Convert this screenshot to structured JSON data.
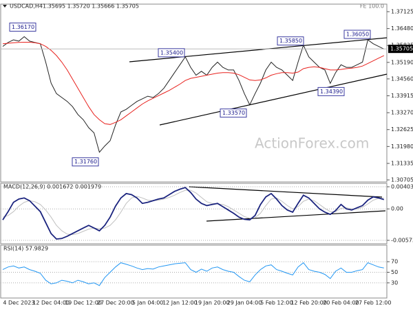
{
  "header": {
    "symbol": "USDCAD,H4",
    "quote": "1.35695 1.35720 1.35666 1.35705",
    "fe": "FE 100.0"
  },
  "watermark": "ActionForex.com",
  "chart_data": [
    {
      "type": "line",
      "categories": [
        null,
        null,
        null,
        "4 Dec 2023",
        null,
        null,
        null,
        null,
        null,
        "12 Dec 04:00",
        null,
        null,
        null,
        null,
        null,
        "19 Dec 12:00",
        null,
        null,
        null,
        null,
        null,
        "27 Dec 20:00",
        null,
        null,
        null,
        null,
        null,
        "5 Jan 04:00",
        null,
        null,
        null,
        null,
        null,
        "12 Jan 12:00",
        null,
        null,
        null,
        null,
        null,
        "19 Jan 20:00",
        null,
        null,
        null,
        null,
        null,
        "29 Jan 04:00",
        null,
        null,
        null,
        null,
        null,
        "5 Feb 12:00",
        null,
        null,
        null,
        null,
        null,
        "12 Feb 20:00",
        null,
        null,
        null,
        null,
        null,
        "20 Feb 04:00",
        null,
        null,
        null,
        null,
        null,
        "27 Feb 12:00",
        null,
        null
      ],
      "series": [
        {
          "color": "#222222",
          "values": [
            1.358,
            1.3595,
            1.3605,
            1.36,
            1.3617,
            1.36,
            1.3595,
            1.359,
            1.352,
            1.344,
            1.34,
            1.3385,
            1.337,
            1.335,
            1.332,
            1.33,
            1.327,
            1.325,
            1.3176,
            1.32,
            1.322,
            1.328,
            1.333,
            1.334,
            1.3355,
            1.337,
            1.338,
            1.339,
            1.3385,
            1.34,
            1.342,
            1.345,
            1.348,
            1.351,
            1.354,
            1.35,
            1.347,
            1.3485,
            1.347,
            1.35,
            1.352,
            1.35,
            1.349,
            1.349,
            1.345,
            1.34,
            1.3357,
            1.34,
            1.344,
            1.349,
            1.352,
            1.35,
            1.349,
            1.347,
            1.345,
            1.352,
            1.3585,
            1.354,
            1.352,
            1.35,
            1.349,
            1.3439,
            1.348,
            1.351,
            1.35,
            1.35,
            1.351,
            1.352,
            1.3605,
            1.359,
            1.358,
            1.357
          ]
        },
        {
          "color": "#e8211d",
          "values": [
            1.359,
            1.3592,
            1.3594,
            1.3595,
            1.3596,
            1.3596,
            1.3594,
            1.359,
            1.358,
            1.3565,
            1.3545,
            1.352,
            1.349,
            1.3455,
            1.342,
            1.3385,
            1.335,
            1.332,
            1.33,
            1.3285,
            1.3282,
            1.329,
            1.33,
            1.3315,
            1.333,
            1.3345,
            1.336,
            1.3372,
            1.3382,
            1.3392,
            1.3402,
            1.3412,
            1.3424,
            1.3436,
            1.345,
            1.3458,
            1.3462,
            1.3466,
            1.347,
            1.3474,
            1.3478,
            1.348,
            1.348,
            1.3478,
            1.3472,
            1.3462,
            1.3452,
            1.345,
            1.3452,
            1.346,
            1.347,
            1.3476,
            1.348,
            1.348,
            1.3478,
            1.3482,
            1.3495,
            1.35,
            1.3502,
            1.35,
            1.3495,
            1.349,
            1.349,
            1.3492,
            1.3495,
            1.3497,
            1.35,
            1.3505,
            1.3515,
            1.3525,
            1.3535,
            1.3545
          ]
        }
      ],
      "ylim": [
        1.30705,
        1.37125
      ],
      "yticks": [
        1.37125,
        {
          "value": 1.3648,
          "label": "1.36480"
        },
        1.35835,
        {
          "value": 1.3519,
          "label": "1.35190"
        },
        {
          "value": 1.3456,
          "label": "1.34560"
        },
        1.33915,
        {
          "value": 1.3327,
          "label": "1.33270"
        },
        1.32625,
        {
          "value": 1.3198,
          "label": "1.31980"
        },
        1.31335,
        1.30705
      ],
      "last": {
        "value": 1.35705,
        "label": "1.35705"
      },
      "annotations": [
        {
          "value": 1.3617,
          "label": "1.36170"
        },
        {
          "value": 1.3176,
          "label": "1.31760"
        },
        {
          "value": 1.354,
          "label": "1.35400"
        },
        {
          "value": 1.3585,
          "label": "1.35850"
        },
        {
          "value": 1.3357,
          "label": "1.33570"
        },
        {
          "value": 1.3439,
          "label": "1.34390"
        },
        {
          "value": 1.3605,
          "label": "1.36050"
        }
      ],
      "grid": false
    },
    {
      "type": "line",
      "title": "MACD(12,26,9) 0.001672 0.001979",
      "series": [
        {
          "color": "#c0c0c0",
          "values": [
            -0.0015,
            -0.0012,
            -0.0005,
            0.0005,
            0.0012,
            0.0015,
            0.0013,
            0.0008,
            -0.0002,
            -0.0015,
            -0.003,
            -0.004,
            -0.0046,
            -0.0047,
            -0.0045,
            -0.0041,
            -0.0037,
            -0.0035,
            -0.0036,
            -0.0035,
            -0.003,
            -0.002,
            -0.0006,
            0.001,
            0.002,
            0.0023,
            0.002,
            0.0016,
            0.0015,
            0.0016,
            0.0018,
            0.0021,
            0.0025,
            0.003,
            0.0034,
            0.0034,
            0.0029,
            0.0021,
            0.0013,
            0.001,
            0.0009,
            0.0008,
            0.0004,
            -0.0002,
            -0.0008,
            -0.0014,
            -0.0017,
            -0.0016,
            -0.0008,
            0.0006,
            0.0018,
            0.002,
            0.0014,
            0.0006,
            0,
            0.0004,
            0.0014,
            0.0018,
            0.0015,
            0.0008,
            0.0001,
            -0.0005,
            -0.0005,
            0.0001,
            0.0002,
            0,
            0,
            0.0003,
            0.0009,
            0.0016,
            0.0019,
            0.002
          ]
        },
        {
          "color": "#1a237e",
          "values": [
            -0.002,
            -0.0005,
            0.0012,
            0.0018,
            0.002,
            0.0015,
            0.0005,
            -0.0005,
            -0.0025,
            -0.0045,
            -0.0055,
            -0.0054,
            -0.005,
            -0.0045,
            -0.004,
            -0.0035,
            -0.003,
            -0.0035,
            -0.004,
            -0.003,
            -0.0015,
            0.0005,
            0.002,
            0.0028,
            0.0026,
            0.002,
            0.001,
            0.0012,
            0.0015,
            0.0018,
            0.002,
            0.0026,
            0.0032,
            0.0036,
            0.0039,
            0.003,
            0.0018,
            0.001,
            0.0006,
            0.0008,
            0.001,
            0.0004,
            -0.0002,
            -0.0008,
            -0.0015,
            -0.0019,
            -0.002,
            -0.0012,
            0.0008,
            0.0022,
            0.0028,
            0.0018,
            0.0006,
            -0.0002,
            -0.0006,
            0.001,
            0.0025,
            0.002,
            0.001,
            0,
            -0.0006,
            -0.001,
            -0.0003,
            0.0008,
            0,
            -0.0002,
            0.0002,
            0.0006,
            0.0016,
            0.0022,
            0.002,
            0.0017
          ]
        }
      ],
      "ylim": [
        -0.005737,
        0.004038
      ],
      "yticks": [
        0.004038,
        {
          "value": 0,
          "label": "0.00"
        },
        -0.005737
      ],
      "grid": true
    },
    {
      "type": "line",
      "title": "RSI(14) 57.9829",
      "series": [
        {
          "color": "#2196f3",
          "values": [
            55,
            60,
            62,
            58,
            60,
            55,
            52,
            48,
            35,
            28,
            30,
            35,
            33,
            30,
            35,
            32,
            28,
            30,
            25,
            40,
            50,
            60,
            68,
            65,
            62,
            58,
            55,
            57,
            56,
            60,
            62,
            64,
            66,
            67,
            68,
            55,
            50,
            56,
            52,
            58,
            60,
            55,
            52,
            50,
            42,
            35,
            32,
            45,
            55,
            62,
            64,
            55,
            52,
            48,
            45,
            60,
            68,
            55,
            52,
            50,
            46,
            38,
            52,
            58,
            50,
            50,
            53,
            55,
            68,
            64,
            60,
            58
          ]
        }
      ],
      "ylim": [
        0,
        100
      ],
      "yticks": [
        70,
        50,
        30
      ],
      "grid": true
    }
  ]
}
